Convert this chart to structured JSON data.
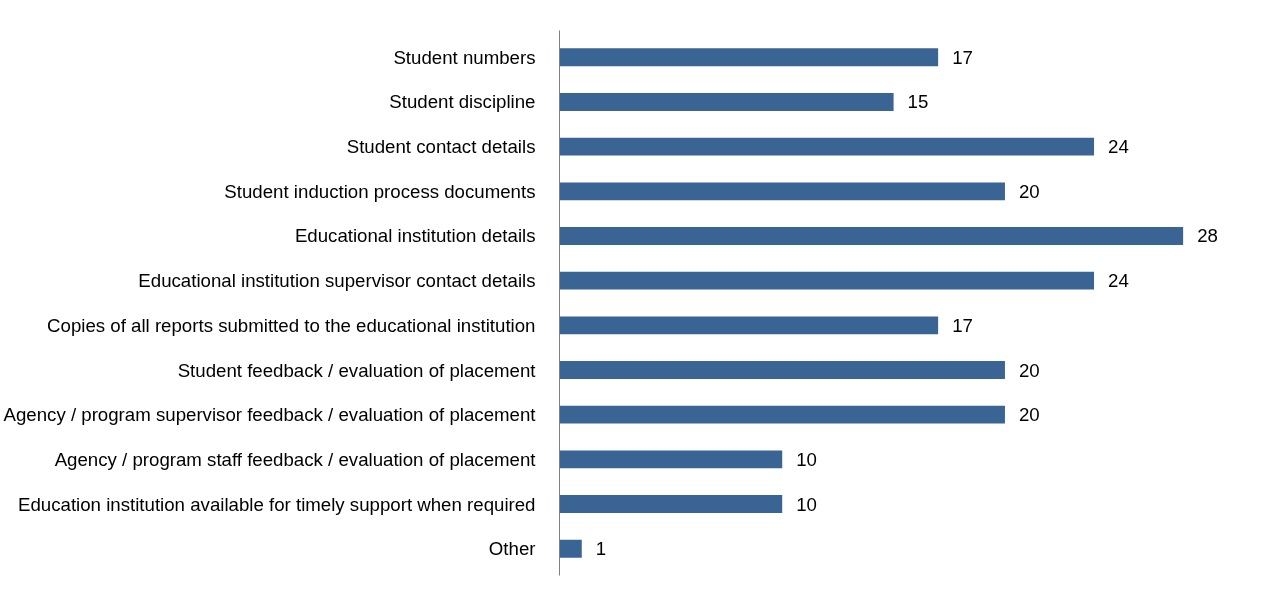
{
  "chart_data": {
    "type": "bar",
    "orientation": "horizontal",
    "categories": [
      "Student numbers",
      "Student discipline",
      "Student contact details",
      "Student induction process documents",
      "Educational institution details",
      "Educational institution supervisor contact details",
      "Copies of all reports submitted to the educational institution",
      "Student feedback / evaluation of placement",
      "Agency / program supervisor feedback / evaluation of placement",
      "Agency / program staff feedback / evaluation of placement",
      "Education institution available for timely support when required",
      "Other"
    ],
    "values": [
      17,
      15,
      24,
      20,
      28,
      24,
      17,
      20,
      20,
      10,
      10,
      1
    ],
    "color": "#3a6494",
    "data_labels": true,
    "grid": false,
    "tick_labels": "y"
  }
}
